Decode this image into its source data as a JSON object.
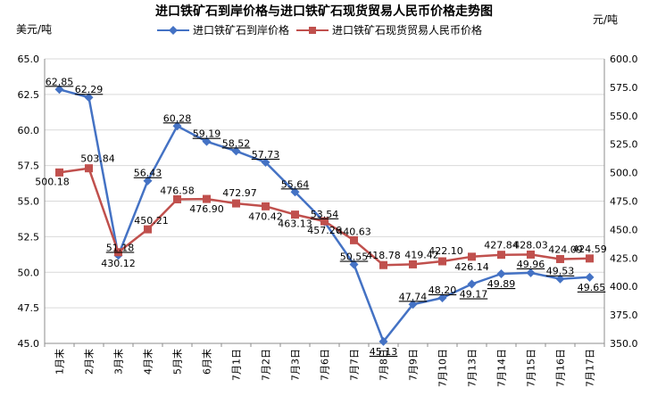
{
  "chart_data": {
    "type": "line",
    "title": "进口铁矿石到岸价格与进口铁矿石现货贸易人民币价格走势图",
    "left_unit": "美元/吨",
    "right_unit": "元/吨",
    "categories": [
      "1月末",
      "2月末",
      "3月末",
      "4月末",
      "5月末",
      "6月末",
      "7月1日",
      "7月2日",
      "7月3日",
      "7月6日",
      "7月7日",
      "7月8日",
      "7月9日",
      "7月10日",
      "7月13日",
      "7月14日",
      "7月15日",
      "7月16日",
      "7月17日"
    ],
    "left_axis": {
      "min": 45.0,
      "max": 65.0,
      "step": 2.5,
      "ticks": [
        "45.0",
        "47.5",
        "50.0",
        "52.5",
        "55.0",
        "57.5",
        "60.0",
        "62.5",
        "65.0"
      ]
    },
    "right_axis": {
      "min": 350.0,
      "max": 600.0,
      "step": 25,
      "ticks": [
        "350.0",
        "375.0",
        "400.0",
        "425.0",
        "450.0",
        "475.0",
        "500.0",
        "525.0",
        "550.0",
        "575.0",
        "600.0"
      ]
    },
    "grid": true,
    "legend_position": "top",
    "series": [
      {
        "name": "进口铁矿石到岸价格",
        "axis": "left",
        "color": "#4472C4",
        "marker": "diamond",
        "values": [
          62.85,
          62.29,
          51.18,
          56.43,
          60.28,
          59.19,
          58.52,
          57.73,
          55.64,
          53.54,
          50.55,
          45.13,
          47.74,
          48.2,
          49.17,
          49.89,
          49.96,
          49.53,
          49.65
        ],
        "labels": [
          "62.85",
          "62.29",
          "51.18",
          "56.43",
          "60.28",
          "59.19",
          "58.52",
          "57.73",
          "55.64",
          "53.54",
          "50.55",
          "45.13",
          "47.74",
          "48.20",
          "49.17",
          "49.89",
          "49.96",
          "49.53",
          "49.65"
        ]
      },
      {
        "name": "进口铁矿石现货贸易人民币价格",
        "axis": "right",
        "color": "#C0504D",
        "marker": "square",
        "values": [
          500.18,
          503.84,
          430.12,
          450.21,
          476.58,
          476.9,
          472.97,
          470.42,
          463.13,
          457.26,
          440.63,
          418.78,
          419.42,
          422.1,
          426.14,
          427.84,
          428.03,
          424.09,
          424.59
        ],
        "labels": [
          "500.18",
          "503.84",
          "430.12",
          "450.21",
          "476.58",
          "476.90",
          "472.97",
          "470.42",
          "463.13",
          "457.26",
          "440.63",
          "418.78",
          "419.42",
          "422.10",
          "426.14",
          "427.84",
          "428.03",
          "424.09",
          "424.59"
        ]
      }
    ]
  }
}
